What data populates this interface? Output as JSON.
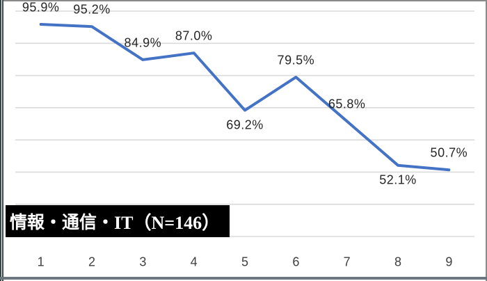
{
  "frame": {
    "background": "#ffffff",
    "border_dark": "#35494d",
    "border_slate": "#6b7680",
    "border_gray": "#8a8a8a"
  },
  "category_label": {
    "text_jp": "情報・通信・",
    "text_en": "IT（N=146）",
    "full_text": "情報・通信・IT（N=146）",
    "bg": "#000000",
    "color": "#ffffff"
  },
  "chart_data": {
    "type": "line",
    "title": "",
    "xlabel": "",
    "ylabel": "",
    "categories": [
      "1",
      "2",
      "3",
      "4",
      "5",
      "6",
      "7",
      "8",
      "9"
    ],
    "series": [
      {
        "name": "情報・通信・IT（N=146）",
        "values": [
          95.9,
          95.2,
          84.9,
          87.0,
          69.2,
          79.5,
          65.8,
          52.1,
          50.7
        ]
      }
    ],
    "data_labels": [
      "95.9%",
      "95.2%",
      "84.9%",
      "87.0%",
      "69.2%",
      "79.5%",
      "65.8%",
      "52.1%",
      "50.7%"
    ],
    "data_label_side": [
      "above",
      "above",
      "above",
      "above",
      "below",
      "above",
      "above",
      "below",
      "above"
    ],
    "ylim": [
      30,
      100
    ],
    "gridline_step": 10,
    "grid": true,
    "legend_position": "none",
    "line_color": "#4472C4",
    "gridline_color": "#DADADA",
    "data_label_color": "#262626",
    "axis_label_color": "#404040"
  }
}
